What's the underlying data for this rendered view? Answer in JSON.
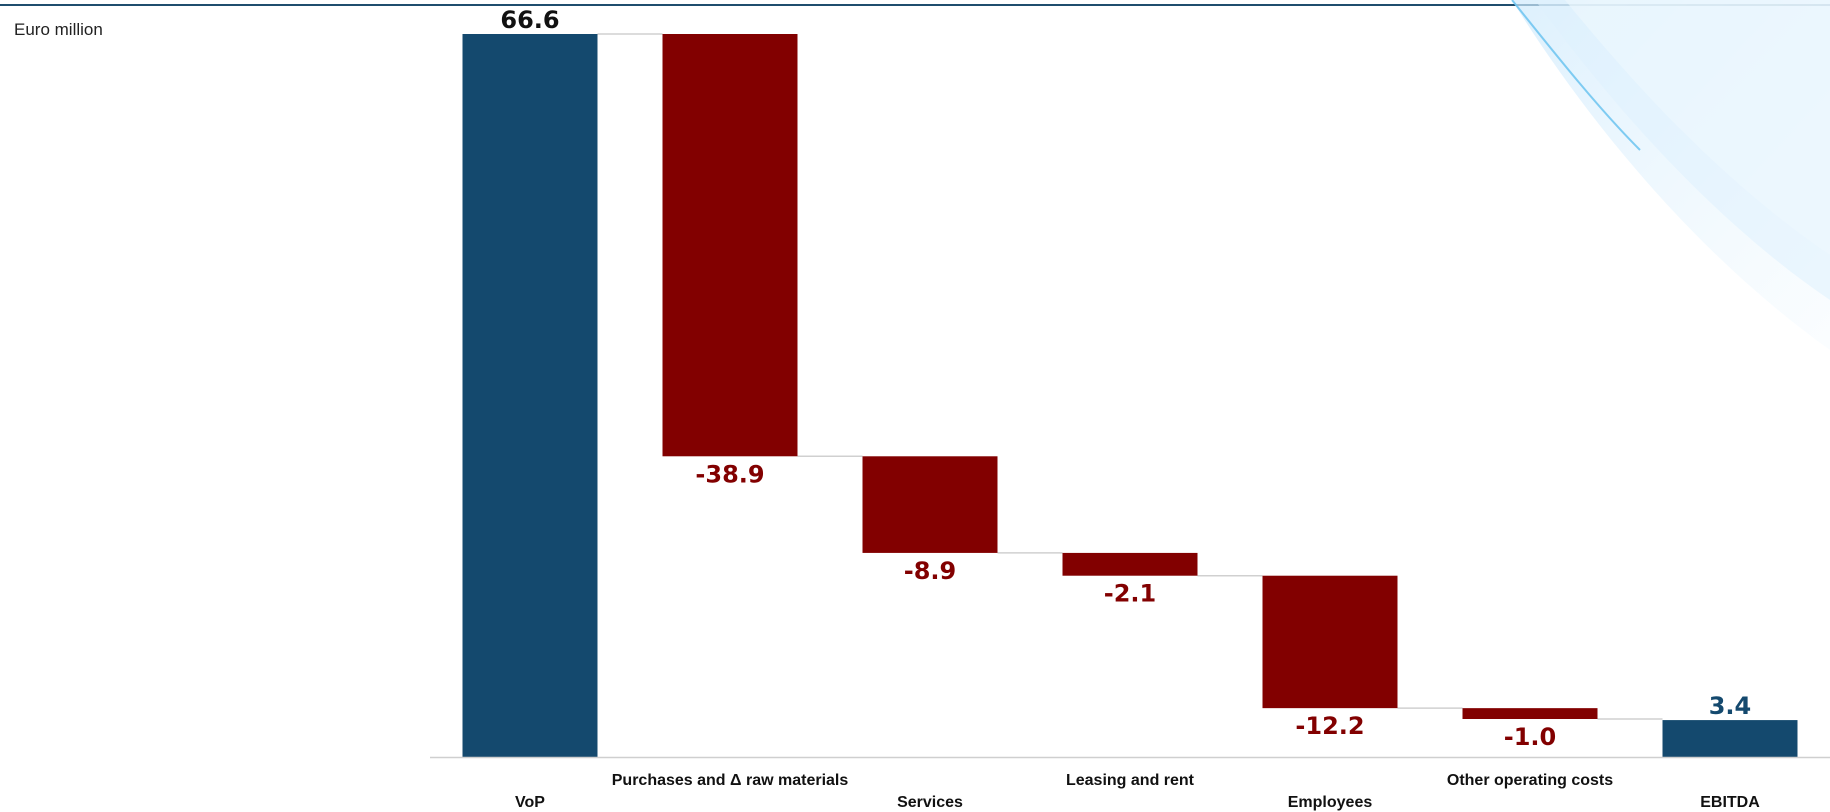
{
  "unit_label": "Euro million",
  "chart_data": {
    "type": "bar",
    "subtype": "waterfall",
    "title": "",
    "xlabel": "",
    "ylabel": "Euro million",
    "categories": [
      "VoP",
      "Purchases and Δ raw materials",
      "Services",
      "Leasing and rent",
      "Employees",
      "Other operating costs",
      "EBITDA"
    ],
    "values": [
      66.6,
      -38.9,
      -8.9,
      -2.1,
      -12.2,
      -1.0,
      3.4
    ],
    "value_labels": [
      "66.6",
      "-38.9",
      "-8.9",
      "-2.1",
      "-12.2",
      "-1.0",
      "3.4"
    ],
    "bar_kinds": [
      "total",
      "delta",
      "delta",
      "delta",
      "delta",
      "delta",
      "total"
    ],
    "ylim": [
      0,
      66.6
    ],
    "grid": false,
    "legend": "none",
    "colors": {
      "total": "#14496e",
      "negative": "#820000",
      "total_label_first": "#111111",
      "total_label_last": "#14496e",
      "negative_label": "#820000",
      "connector": "#d0d0d0",
      "axis": "#cfcfcf"
    }
  }
}
